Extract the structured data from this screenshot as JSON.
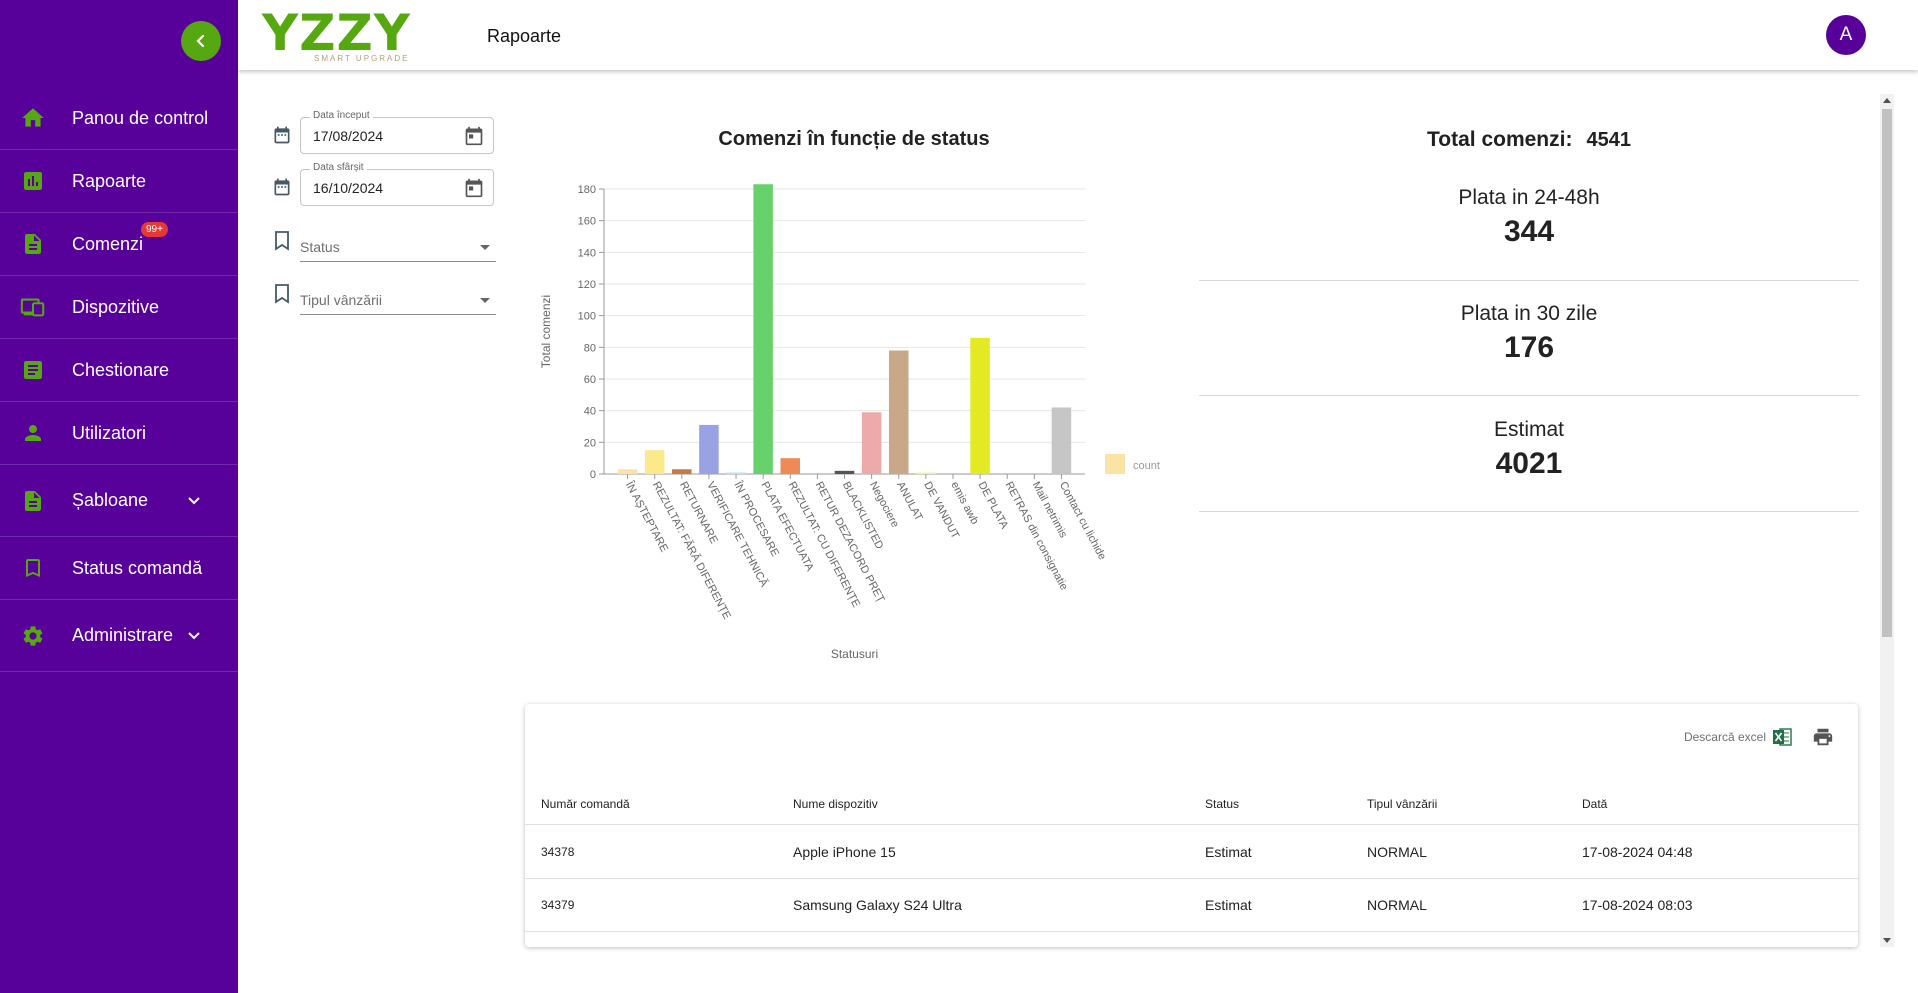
{
  "app": {
    "logo_text": "YZZY",
    "logo_tagline": "SMART UPGRADE",
    "page_title": "Rapoarte",
    "user_initial": "A"
  },
  "colors": {
    "sidebar_bg": "#57009a",
    "accent_green": "#55a80f",
    "badge_red": "#e53935"
  },
  "sidebar": {
    "items": [
      {
        "label": "Panou de control",
        "icon": "home-icon"
      },
      {
        "label": "Rapoarte",
        "icon": "bar-chart-icon"
      },
      {
        "label": "Comenzi",
        "icon": "document-icon",
        "badge": "99+"
      },
      {
        "label": "Dispozitive",
        "icon": "devices-icon"
      },
      {
        "label": "Chestionare",
        "icon": "list-document-icon"
      },
      {
        "label": "Utilizatori",
        "icon": "person-icon"
      },
      {
        "label": "Șabloane",
        "icon": "template-icon",
        "expandable": true
      },
      {
        "label": "Status comandă",
        "icon": "bookmark-icon"
      },
      {
        "label": "Administrare",
        "icon": "gear-icon",
        "expandable": true
      }
    ]
  },
  "filters": {
    "start_date": {
      "label": "Data început",
      "value": "17/08/2024"
    },
    "end_date": {
      "label": "Data sfârșit",
      "value": "16/10/2024"
    },
    "status": {
      "placeholder": "Status"
    },
    "sale_type": {
      "placeholder": "Tipul vânzării"
    }
  },
  "chart_data": {
    "type": "bar",
    "title": "Comenzi în funcție de status",
    "xlabel": "Statusuri",
    "ylabel": "Total comenzi",
    "ylim": [
      0,
      180
    ],
    "yticks": [
      0,
      20,
      40,
      60,
      80,
      100,
      120,
      140,
      160,
      180
    ],
    "grid": true,
    "legend": {
      "position": "right",
      "label": "count"
    },
    "categories": [
      "ÎN AȘTEPTARE",
      "REZULTAT: FĂRĂ DIFERENȚE",
      "RETURNARE",
      "VERIFICARE TEHNICĂ",
      "ÎN PROCESARE",
      "PLATA EFECTUATA",
      "REZULTAT: CU DIFERENȚE",
      "RETUR DEZACORD PREȚ",
      "BLACKLISTED",
      "Negociere",
      "ANULAT",
      "DE VANDUT",
      "emis awb",
      "DE PLATA",
      "RETRAS din consignatie",
      "Mail netrimis",
      "Contact cu lichide"
    ],
    "values": [
      3,
      15,
      3,
      31,
      1,
      183,
      10,
      0,
      2,
      39,
      78,
      1,
      0,
      86,
      0,
      0,
      42
    ],
    "colors": [
      "#fbe3a6",
      "#fbe98a",
      "#c57a4a",
      "#99a3e3",
      "#b5e7f7",
      "#67d16c",
      "#ee8a55",
      "#bbbbbb",
      "#555555",
      "#eeaaaa",
      "#c9a88a",
      "#f2f2a0",
      "#f4c28a",
      "#e3ea24",
      "#cccccc",
      "#cccccc",
      "#c6c6c6"
    ]
  },
  "summary": {
    "total_label": "Total comenzi:",
    "total_value": "4541",
    "stats": [
      {
        "label": "Plata in 24-48h",
        "value": "344"
      },
      {
        "label": "Plata in 30 zile",
        "value": "176"
      },
      {
        "label": "Estimat",
        "value": "4021"
      }
    ]
  },
  "table": {
    "download_label": "Descarcă excel",
    "columns": [
      "Număr comandă",
      "Nume dispozitiv",
      "Status",
      "Tipul vânzării",
      "Dată"
    ],
    "rows": [
      [
        "34378",
        "Apple iPhone 15",
        "Estimat",
        "NORMAL",
        "17-08-2024 04:48"
      ],
      [
        "34379",
        "Samsung Galaxy S24 Ultra",
        "Estimat",
        "NORMAL",
        "17-08-2024 08:03"
      ]
    ]
  }
}
